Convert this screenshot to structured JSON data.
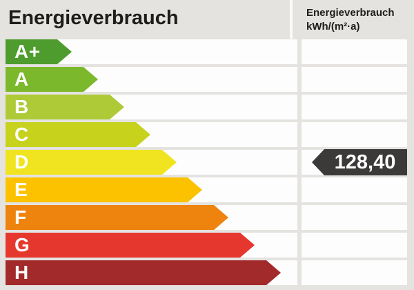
{
  "header": {
    "title": "Energieverbrauch",
    "unit_line1": "Energieverbrauch",
    "unit_line2": "kWh/(m²·a)"
  },
  "scale": {
    "classes": [
      {
        "label": "A+",
        "color": "#4e9c2d",
        "arrow_width": 96
      },
      {
        "label": "A",
        "color": "#7cb82c",
        "arrow_width": 134
      },
      {
        "label": "B",
        "color": "#aeca37",
        "arrow_width": 172
      },
      {
        "label": "C",
        "color": "#c6d21c",
        "arrow_width": 210
      },
      {
        "label": "D",
        "color": "#efe41f",
        "arrow_width": 248
      },
      {
        "label": "E",
        "color": "#fcc200",
        "arrow_width": 285
      },
      {
        "label": "F",
        "color": "#ee830d",
        "arrow_width": 323
      },
      {
        "label": "G",
        "color": "#e6372e",
        "arrow_width": 361
      },
      {
        "label": "H",
        "color": "#a22a2b",
        "arrow_width": 399
      }
    ]
  },
  "value": {
    "text": "128,40",
    "number": 128.4,
    "energy_class": "D",
    "pointer_color": "#3b3a39"
  },
  "colors": {
    "background": "#e5e3e0",
    "row_track": "#fdfdfd",
    "text_dark": "#1d1d1b",
    "text_light": "#ffffff"
  },
  "chart_data": {
    "type": "bar",
    "title": "Energieverbrauch",
    "ylabel": "kWh/(m²·a)",
    "categories": [
      "A+",
      "A",
      "B",
      "C",
      "D",
      "E",
      "F",
      "G",
      "H"
    ],
    "values": [
      96,
      134,
      172,
      210,
      248,
      285,
      323,
      361,
      399
    ],
    "values_note": "relative arrow lengths in px, increasing linearly per class",
    "bar_colors": [
      "#4e9c2d",
      "#7cb82c",
      "#aeca37",
      "#c6d21c",
      "#efe41f",
      "#fcc200",
      "#ee830d",
      "#e6372e",
      "#a22a2b"
    ],
    "orientation": "horizontal",
    "annotation": {
      "marked_value": 128.4,
      "marked_value_text": "128,40",
      "marked_class": "D",
      "unit": "kWh/(m²·a)"
    },
    "legend": false,
    "grid": false
  }
}
